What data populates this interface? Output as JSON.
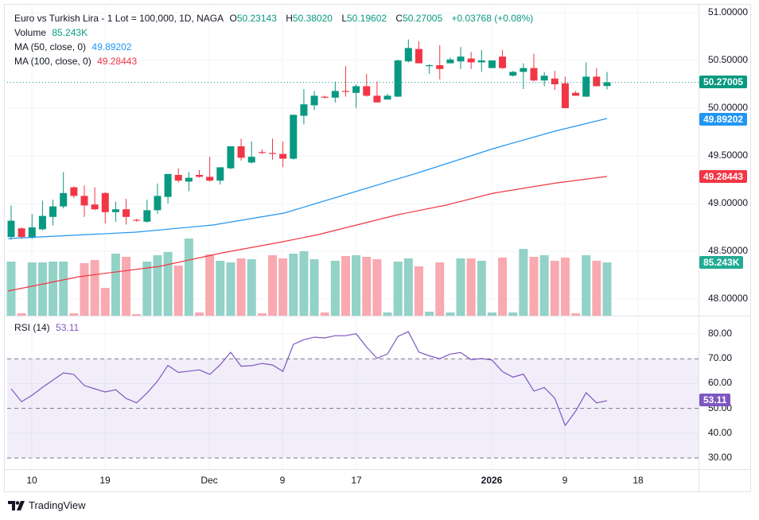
{
  "header": {
    "symbol_line": "Euro vs Turkish Lira - 1 Lot = 100,000, 1D, NAGA",
    "open_label": "O",
    "open": "50.23143",
    "high_label": "H",
    "high": "50.38020",
    "low_label": "L",
    "low": "50.19602",
    "close_label": "C",
    "close": "50.27005",
    "change": "+0.03768 (+0.08%)",
    "volume_label": "Volume",
    "volume": "85.243K",
    "ma50_label": "MA (50, close, 0)",
    "ma50": "49.89202",
    "ma100_label": "MA (100, close, 0)",
    "ma100": "49.28443",
    "rsi_label": "RSI (14)",
    "rsi": "53.11"
  },
  "price_axis": [
    "51.00000",
    "50.50000",
    "50.00000",
    "49.50000",
    "49.00000",
    "48.50000",
    "48.00000"
  ],
  "rsi_axis": [
    "80.00",
    "70.00",
    "60.00",
    "50.00",
    "40.00",
    "30.00"
  ],
  "tags": {
    "last_price": "50.27005",
    "ma50": "49.89202",
    "ma100": "49.28443",
    "volume": "85.243K",
    "rsi": "53.11"
  },
  "time_axis": [
    "10",
    "19",
    "Dec",
    "9",
    "17",
    "2026",
    "9",
    "18"
  ],
  "logo": "TradingView",
  "colors": {
    "up": "#089981",
    "down": "#f23645",
    "vol_up": "#92d2c7",
    "vol_down": "#f9a9b0",
    "ma50": "#2196f3",
    "ma100": "#f23645",
    "rsi": "#7e57c2"
  },
  "chart_data": {
    "type": "candlestick",
    "price_range": [
      47.85,
      51.1
    ],
    "rsi_range": [
      30,
      80
    ],
    "rsi_bands": [
      30,
      50,
      70
    ],
    "candles_ohlc": [
      [
        48.65,
        48.98,
        48.62,
        48.82
      ],
      [
        48.74,
        48.75,
        48.63,
        48.65
      ],
      [
        48.64,
        48.89,
        48.63,
        48.75
      ],
      [
        48.73,
        49.03,
        48.72,
        48.87
      ],
      [
        48.86,
        49.04,
        48.77,
        48.97
      ],
      [
        48.97,
        49.33,
        48.95,
        49.11
      ],
      [
        49.17,
        49.18,
        49.06,
        49.08
      ],
      [
        49.08,
        49.19,
        48.86,
        48.98
      ],
      [
        48.99,
        49.17,
        48.93,
        48.94
      ],
      [
        49.11,
        49.12,
        48.79,
        48.91
      ],
      [
        48.91,
        49.02,
        48.81,
        48.94
      ],
      [
        48.94,
        49.05,
        48.78,
        48.86
      ],
      [
        48.83,
        48.84,
        48.81,
        48.82
      ],
      [
        48.81,
        49.04,
        48.8,
        48.93
      ],
      [
        48.93,
        49.21,
        48.89,
        49.08
      ],
      [
        49.07,
        49.31,
        49.0,
        49.31
      ],
      [
        49.3,
        49.37,
        49.22,
        49.24
      ],
      [
        49.23,
        49.33,
        49.13,
        49.27
      ],
      [
        49.3,
        49.35,
        49.27,
        49.28
      ],
      [
        49.28,
        49.49,
        49.23,
        49.24
      ],
      [
        49.24,
        49.38,
        49.2,
        49.38
      ],
      [
        49.37,
        49.6,
        49.36,
        49.6
      ],
      [
        49.6,
        49.68,
        49.45,
        49.48
      ],
      [
        49.43,
        49.65,
        49.42,
        49.49
      ],
      [
        49.54,
        49.57,
        49.52,
        49.53
      ],
      [
        49.53,
        49.68,
        49.46,
        49.52
      ],
      [
        49.52,
        49.65,
        49.38,
        49.47
      ],
      [
        49.47,
        49.93,
        49.46,
        49.93
      ],
      [
        49.92,
        50.2,
        49.83,
        50.04
      ],
      [
        50.03,
        50.18,
        49.98,
        50.13
      ],
      [
        50.12,
        50.13,
        50.1,
        50.11
      ],
      [
        50.11,
        50.28,
        50.06,
        50.18
      ],
      [
        50.18,
        50.44,
        50.12,
        50.17
      ],
      [
        50.16,
        50.25,
        50.0,
        50.23
      ],
      [
        50.23,
        50.36,
        50.12,
        50.13
      ],
      [
        50.13,
        50.28,
        50.06,
        50.06
      ],
      [
        50.09,
        50.15,
        50.09,
        50.13
      ],
      [
        50.12,
        50.51,
        50.12,
        50.5
      ],
      [
        50.49,
        50.72,
        50.48,
        50.63
      ],
      [
        50.62,
        50.7,
        50.47,
        50.47
      ],
      [
        50.44,
        50.46,
        50.36,
        50.45
      ],
      [
        50.45,
        50.66,
        50.3,
        50.41
      ],
      [
        50.47,
        50.53,
        50.47,
        50.51
      ],
      [
        50.49,
        50.64,
        50.41,
        50.54
      ],
      [
        50.52,
        50.59,
        50.41,
        50.48
      ],
      [
        50.48,
        50.61,
        50.38,
        50.5
      ],
      [
        50.42,
        50.5,
        50.42,
        50.5
      ],
      [
        50.54,
        50.61,
        50.41,
        50.42
      ],
      [
        50.34,
        50.39,
        50.33,
        50.38
      ],
      [
        50.38,
        50.47,
        50.2,
        50.42
      ],
      [
        50.42,
        50.57,
        50.28,
        50.29
      ],
      [
        50.29,
        50.38,
        50.23,
        50.34
      ],
      [
        50.31,
        50.39,
        50.19,
        50.25
      ],
      [
        50.26,
        50.33,
        50.0,
        50.0
      ],
      [
        50.16,
        50.18,
        50.13,
        50.13
      ],
      [
        50.12,
        50.48,
        50.12,
        50.33
      ],
      [
        50.33,
        50.42,
        50.23,
        50.23
      ],
      [
        50.23143,
        50.3802,
        50.19602,
        50.27005
      ]
    ],
    "volume_k": [
      86.5,
      3.8,
      85.2,
      85.2,
      86.5,
      86.5,
      3.8,
      84.0,
      89.0,
      44.5,
      99.2,
      94.1,
      2.5,
      86.5,
      96.7,
      101.8,
      80.1,
      123.4,
      5.1,
      97.9,
      87.8,
      85.2,
      91.6,
      90.3,
      3.8,
      96.7,
      91.6,
      99.2,
      103.0,
      90.3,
      5.1,
      87.8,
      95.4,
      96.7,
      94.1,
      90.3,
      5.1,
      86.5,
      91.6,
      78.9,
      6.4,
      85.2,
      5.1,
      91.6,
      91.6,
      87.8,
      5.1,
      92.9,
      5.1,
      106.8,
      94.1,
      96.7,
      87.8,
      92.9,
      3.8,
      96.7,
      87.8,
      85.243
    ],
    "ma50_points": [
      [
        -0.3,
        48.633
      ],
      [
        11.9,
        48.7
      ],
      [
        19.3,
        48.775
      ],
      [
        26.1,
        48.9
      ],
      [
        29.4,
        49.008
      ],
      [
        39.0,
        49.325
      ],
      [
        46.1,
        49.575
      ],
      [
        52.0,
        49.758
      ],
      [
        57,
        49.892
      ]
    ],
    "ma100_points": [
      [
        -0.3,
        48.083
      ],
      [
        6.5,
        48.233
      ],
      [
        14.2,
        48.342
      ],
      [
        20.2,
        48.483
      ],
      [
        26,
        48.6
      ],
      [
        29.4,
        48.675
      ],
      [
        37,
        48.883
      ],
      [
        41.6,
        48.983
      ],
      [
        46.1,
        49.108
      ],
      [
        52.2,
        49.217
      ],
      [
        57,
        49.284
      ]
    ],
    "rsi": [
      57.9,
      52.7,
      55.3,
      58.5,
      61.4,
      64.3,
      63.7,
      59.2,
      57.9,
      56.6,
      57.5,
      54.0,
      52.2,
      56.2,
      61.0,
      67.3,
      64.5,
      65.0,
      65.5,
      63.7,
      67.6,
      72.6,
      67.0,
      67.2,
      68.1,
      67.5,
      64.9,
      75.8,
      77.7,
      78.7,
      78.4,
      79.3,
      79.3,
      80.1,
      74.7,
      70.2,
      71.9,
      79.0,
      80.9,
      72.7,
      71.2,
      70.0,
      71.9,
      72.5,
      69.6,
      70.1,
      69.5,
      64.8,
      62.6,
      63.8,
      57.0,
      58.4,
      54.1,
      43.1,
      48.9,
      56.3,
      52.2,
      53.11
    ]
  }
}
